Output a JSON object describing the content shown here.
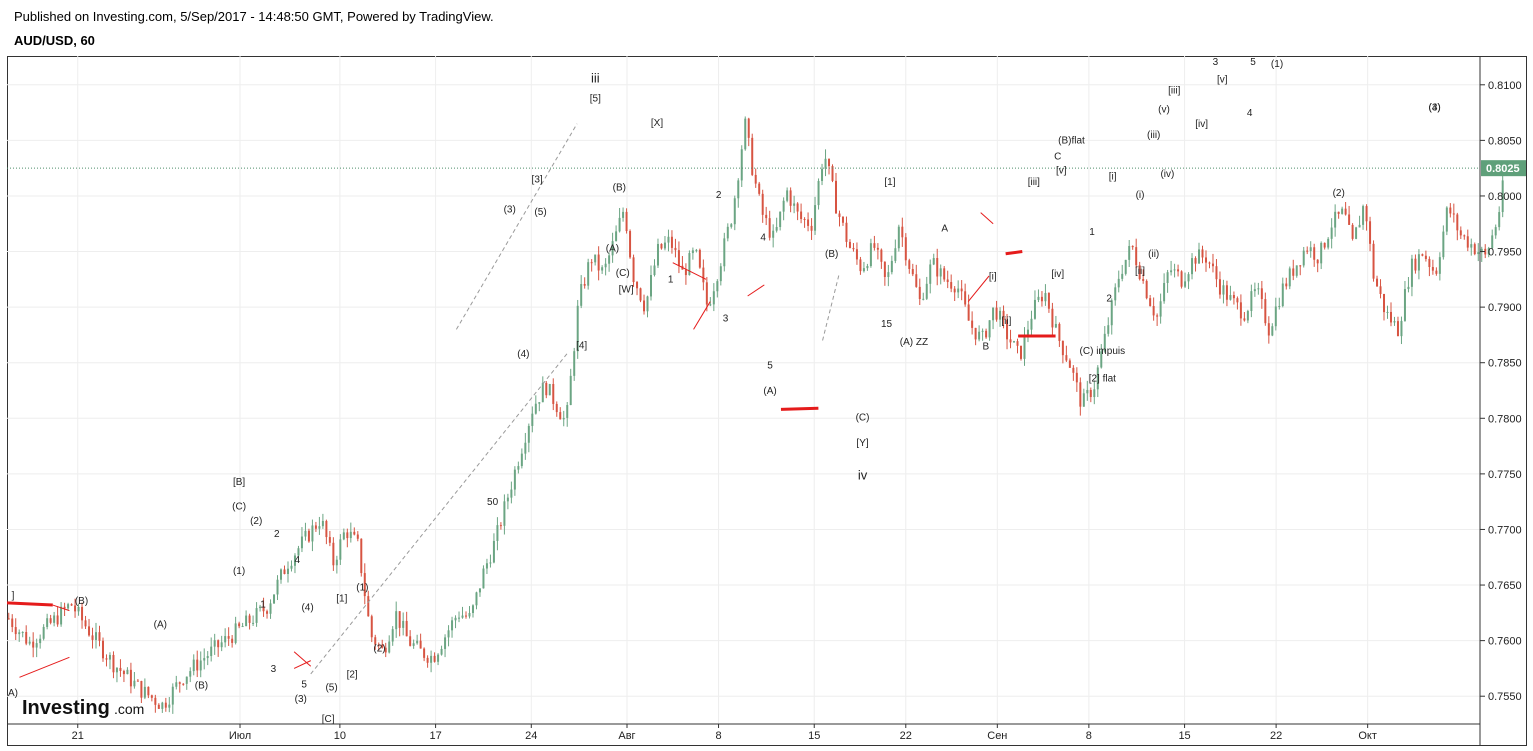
{
  "header": {
    "published": "Published on Investing.com, 5/Sep/2017 - 14:48:50 GMT, Powered by TradingView.",
    "symbol": "AUD/USD, 60"
  },
  "colors": {
    "up": "#6ba583",
    "down": "#d75442",
    "grid": "#eeeeee",
    "axis": "#555555",
    "last_price_bg": "#5fa07a",
    "dotted_line": "#4f8f6b",
    "trend_red": "#e51b1b",
    "dashed_line": "#9a9a9a"
  },
  "logo": {
    "brand": "Investing",
    "suffix": ".com"
  },
  "chart_data": {
    "type": "candlestick",
    "timeframe": "60",
    "ylim": [
      0.7525,
      0.8125
    ],
    "y_ticks": [
      "0.8100",
      "0.8050",
      "0.8000",
      "0.7950",
      "0.7900",
      "0.7850",
      "0.7800",
      "0.7750",
      "0.7700",
      "0.7650",
      "0.7600",
      "0.7550"
    ],
    "x_ticks": [
      "21",
      "Июл",
      "10",
      "17",
      "24",
      "Авг",
      "8",
      "15",
      "22",
      "Сен",
      "8",
      "15",
      "22",
      "Окт"
    ],
    "last_price": "0.8025",
    "price_path": [
      [
        0,
        0.762
      ],
      [
        5,
        0.7598
      ],
      [
        10,
        0.7615
      ],
      [
        15,
        0.7633
      ],
      [
        20,
        0.7605
      ],
      [
        25,
        0.758
      ],
      [
        32,
        0.7555
      ],
      [
        37,
        0.7542
      ],
      [
        42,
        0.7568
      ],
      [
        47,
        0.7585
      ],
      [
        52,
        0.76
      ],
      [
        57,
        0.7615
      ],
      [
        62,
        0.763
      ],
      [
        67,
        0.767
      ],
      [
        72,
        0.7695
      ],
      [
        75,
        0.771
      ],
      [
        78,
        0.767
      ],
      [
        81,
        0.77
      ],
      [
        84,
        0.7685
      ],
      [
        87,
        0.7605
      ],
      [
        90,
        0.759
      ],
      [
        93,
        0.7625
      ],
      [
        96,
        0.76
      ],
      [
        99,
        0.759
      ],
      [
        102,
        0.7585
      ],
      [
        105,
        0.7605
      ],
      [
        108,
        0.7625
      ],
      [
        111,
        0.762
      ],
      [
        114,
        0.766
      ],
      [
        117,
        0.769
      ],
      [
        120,
        0.773
      ],
      [
        123,
        0.777
      ],
      [
        126,
        0.781
      ],
      [
        129,
        0.783
      ],
      [
        132,
        0.781
      ],
      [
        134,
        0.7795
      ],
      [
        137,
        0.7905
      ],
      [
        140,
        0.7945
      ],
      [
        143,
        0.793
      ],
      [
        146,
        0.7965
      ],
      [
        148,
        0.799
      ],
      [
        150,
        0.793
      ],
      [
        153,
        0.79
      ],
      [
        156,
        0.795
      ],
      [
        159,
        0.796
      ],
      [
        162,
        0.793
      ],
      [
        165,
        0.795
      ],
      [
        168,
        0.79
      ],
      [
        171,
        0.794
      ],
      [
        174,
        0.7985
      ],
      [
        177,
        0.8065
      ],
      [
        179,
        0.802
      ],
      [
        181,
        0.7985
      ],
      [
        184,
        0.796
      ],
      [
        187,
        0.8005
      ],
      [
        190,
        0.798
      ],
      [
        193,
        0.7975
      ],
      [
        196,
        0.804
      ],
      [
        199,
        0.799
      ],
      [
        202,
        0.7955
      ],
      [
        205,
        0.7935
      ],
      [
        208,
        0.7955
      ],
      [
        211,
        0.792
      ],
      [
        214,
        0.7975
      ],
      [
        216,
        0.7945
      ],
      [
        219,
        0.7905
      ],
      [
        222,
        0.794
      ],
      [
        225,
        0.7925
      ],
      [
        228,
        0.792
      ],
      [
        231,
        0.7885
      ],
      [
        234,
        0.787
      ],
      [
        237,
        0.79
      ],
      [
        240,
        0.7875
      ],
      [
        243,
        0.7855
      ],
      [
        246,
        0.7895
      ],
      [
        249,
        0.7915
      ],
      [
        252,
        0.7875
      ],
      [
        255,
        0.785
      ],
      [
        258,
        0.7812
      ],
      [
        261,
        0.783
      ],
      [
        264,
        0.788
      ],
      [
        267,
        0.793
      ],
      [
        270,
        0.7955
      ],
      [
        273,
        0.792
      ],
      [
        276,
        0.789
      ],
      [
        279,
        0.7935
      ],
      [
        282,
        0.7925
      ],
      [
        285,
        0.7945
      ],
      [
        288,
        0.7945
      ],
      [
        291,
        0.792
      ],
      [
        294,
        0.7905
      ],
      [
        297,
        0.7895
      ],
      [
        300,
        0.7915
      ],
      [
        303,
        0.788
      ],
      [
        306,
        0.7915
      ],
      [
        309,
        0.7935
      ],
      [
        312,
        0.7955
      ],
      [
        315,
        0.7945
      ],
      [
        318,
        0.7975
      ],
      [
        321,
        0.7985
      ],
      [
        323,
        0.7955
      ],
      [
        326,
        0.7995
      ],
      [
        328,
        0.793
      ],
      [
        331,
        0.7895
      ],
      [
        334,
        0.788
      ],
      [
        337,
        0.7935
      ],
      [
        340,
        0.795
      ],
      [
        343,
        0.793
      ],
      [
        346,
        0.799
      ],
      [
        349,
        0.7965
      ],
      [
        352,
        0.7955
      ],
      [
        355,
        0.7945
      ],
      [
        358,
        0.798
      ],
      [
        360,
        0.8025
      ]
    ],
    "labels": [
      {
        "text": "]",
        "x": 0,
        "y": 0.7638
      },
      {
        "text": "(B)",
        "x": 20,
        "y": 0.7633
      },
      {
        "text": "A)",
        "x": 0,
        "y": 0.755
      },
      {
        "text": "(A)",
        "x": 43,
        "y": 0.7612
      },
      {
        "text": "(B)",
        "x": 55,
        "y": 0.7557
      },
      {
        "text": "[B]",
        "x": 66,
        "y": 0.774
      },
      {
        "text": "(C)",
        "x": 66,
        "y": 0.7718
      },
      {
        "text": "(2)",
        "x": 71,
        "y": 0.7705
      },
      {
        "text": "2",
        "x": 77,
        "y": 0.7693
      },
      {
        "text": "(1)",
        "x": 66,
        "y": 0.766
      },
      {
        "text": "1",
        "x": 73,
        "y": 0.763
      },
      {
        "text": "4",
        "x": 83,
        "y": 0.767
      },
      {
        "text": "(4)",
        "x": 86,
        "y": 0.7627
      },
      {
        "text": "3",
        "x": 76,
        "y": 0.7572
      },
      {
        "text": "5",
        "x": 85,
        "y": 0.7558
      },
      {
        "text": "(3)",
        "x": 84,
        "y": 0.7545
      },
      {
        "text": "(5)",
        "x": 93,
        "y": 0.7555
      },
      {
        "text": "[1]",
        "x": 96,
        "y": 0.7635
      },
      {
        "text": "(1)",
        "x": 102,
        "y": 0.7645
      },
      {
        "text": "(2)",
        "x": 107,
        "y": 0.759
      },
      {
        "text": "[2]",
        "x": 99,
        "y": 0.7567
      },
      {
        "text": "[C]",
        "x": 92,
        "y": 0.7527
      },
      {
        "text": "50",
        "x": 140,
        "y": 0.7722
      },
      {
        "text": "(3)",
        "x": 145,
        "y": 0.7985
      },
      {
        "text": "(5)",
        "x": 154,
        "y": 0.7983
      },
      {
        "text": "[3]",
        "x": 153,
        "y": 0.8012
      },
      {
        "text": "(4)",
        "x": 149,
        "y": 0.7855
      },
      {
        "text": "[4]",
        "x": 166,
        "y": 0.7863
      },
      {
        "text": "iii",
        "x": 170,
        "y": 0.8102,
        "big": true
      },
      {
        "text": "[5]",
        "x": 170,
        "y": 0.8085
      },
      {
        "text": "(B)",
        "x": 177,
        "y": 0.8005
      },
      {
        "text": "(A)",
        "x": 175,
        "y": 0.795
      },
      {
        "text": "(C)",
        "x": 178,
        "y": 0.7928
      },
      {
        "text": "[W]",
        "x": 179,
        "y": 0.7913
      },
      {
        "text": "[X]",
        "x": 188,
        "y": 0.8063
      },
      {
        "text": "1",
        "x": 192,
        "y": 0.7922
      },
      {
        "text": "2",
        "x": 206,
        "y": 0.7998
      },
      {
        "text": "3",
        "x": 208,
        "y": 0.7887
      },
      {
        "text": "4",
        "x": 219,
        "y": 0.796
      },
      {
        "text": "5",
        "x": 221,
        "y": 0.7845
      },
      {
        "text": "(A)",
        "x": 221,
        "y": 0.7822
      },
      {
        "text": "(B)",
        "x": 239,
        "y": 0.7945
      },
      {
        "text": "15",
        "x": 255,
        "y": 0.7882
      },
      {
        "text": "(C)",
        "x": 248,
        "y": 0.7798
      },
      {
        "text": "[Y]",
        "x": 248,
        "y": 0.7775
      },
      {
        "text": "iv",
        "x": 248,
        "y": 0.7745,
        "big": true
      },
      {
        "text": "[1]",
        "x": 256,
        "y": 0.801
      },
      {
        "text": "(A) ZZ",
        "x": 263,
        "y": 0.7866
      },
      {
        "text": "A",
        "x": 272,
        "y": 0.7968
      },
      {
        "text": "[i]",
        "x": 286,
        "y": 0.7925
      },
      {
        "text": "[ii]",
        "x": 290,
        "y": 0.7885
      },
      {
        "text": "B",
        "x": 284,
        "y": 0.7862
      },
      {
        "text": "[iii]",
        "x": 298,
        "y": 0.801
      },
      {
        "text": "(B)flat",
        "x": 309,
        "y": 0.8047
      },
      {
        "text": "C",
        "x": 305,
        "y": 0.8033
      },
      {
        "text": "[v]",
        "x": 306,
        "y": 0.802
      },
      {
        "text": "[iv]",
        "x": 305,
        "y": 0.7927
      },
      {
        "text": "1",
        "x": 315,
        "y": 0.7965
      },
      {
        "text": "2",
        "x": 320,
        "y": 0.7905
      },
      {
        "text": "(C) impuis",
        "x": 318,
        "y": 0.7858
      },
      {
        "text": "[2] flat",
        "x": 318,
        "y": 0.7833
      },
      {
        "text": "[i]",
        "x": 321,
        "y": 0.8015
      },
      {
        "text": "(i)",
        "x": 329,
        "y": 0.7998
      },
      {
        "text": "(ii)",
        "x": 333,
        "y": 0.7945
      },
      {
        "text": "[ii]",
        "x": 329,
        "y": 0.793
      },
      {
        "text": "(iii)",
        "x": 333,
        "y": 0.8052
      },
      {
        "text": "(iv)",
        "x": 337,
        "y": 0.8017
      },
      {
        "text": "(v)",
        "x": 336,
        "y": 0.8075
      },
      {
        "text": "[iii]",
        "x": 339,
        "y": 0.8092
      },
      {
        "text": "[iv]",
        "x": 347,
        "y": 0.8062
      },
      {
        "text": "[v]",
        "x": 353,
        "y": 0.8102
      },
      {
        "text": "3",
        "x": 351,
        "y": 0.8118
      },
      {
        "text": "4",
        "x": 361,
        "y": 0.8072
      },
      {
        "text": "5",
        "x": 362,
        "y": 0.8118
      },
      {
        "text": "(1)",
        "x": 369,
        "y": 0.8116
      },
      {
        "text": "(2)",
        "x": 387,
        "y": 0.8
      },
      {
        "text": "(3)",
        "x": 415,
        "y": 0.8077
      },
      {
        "text": "(4)",
        "x": 415,
        "y": 0.8077
      }
    ]
  }
}
